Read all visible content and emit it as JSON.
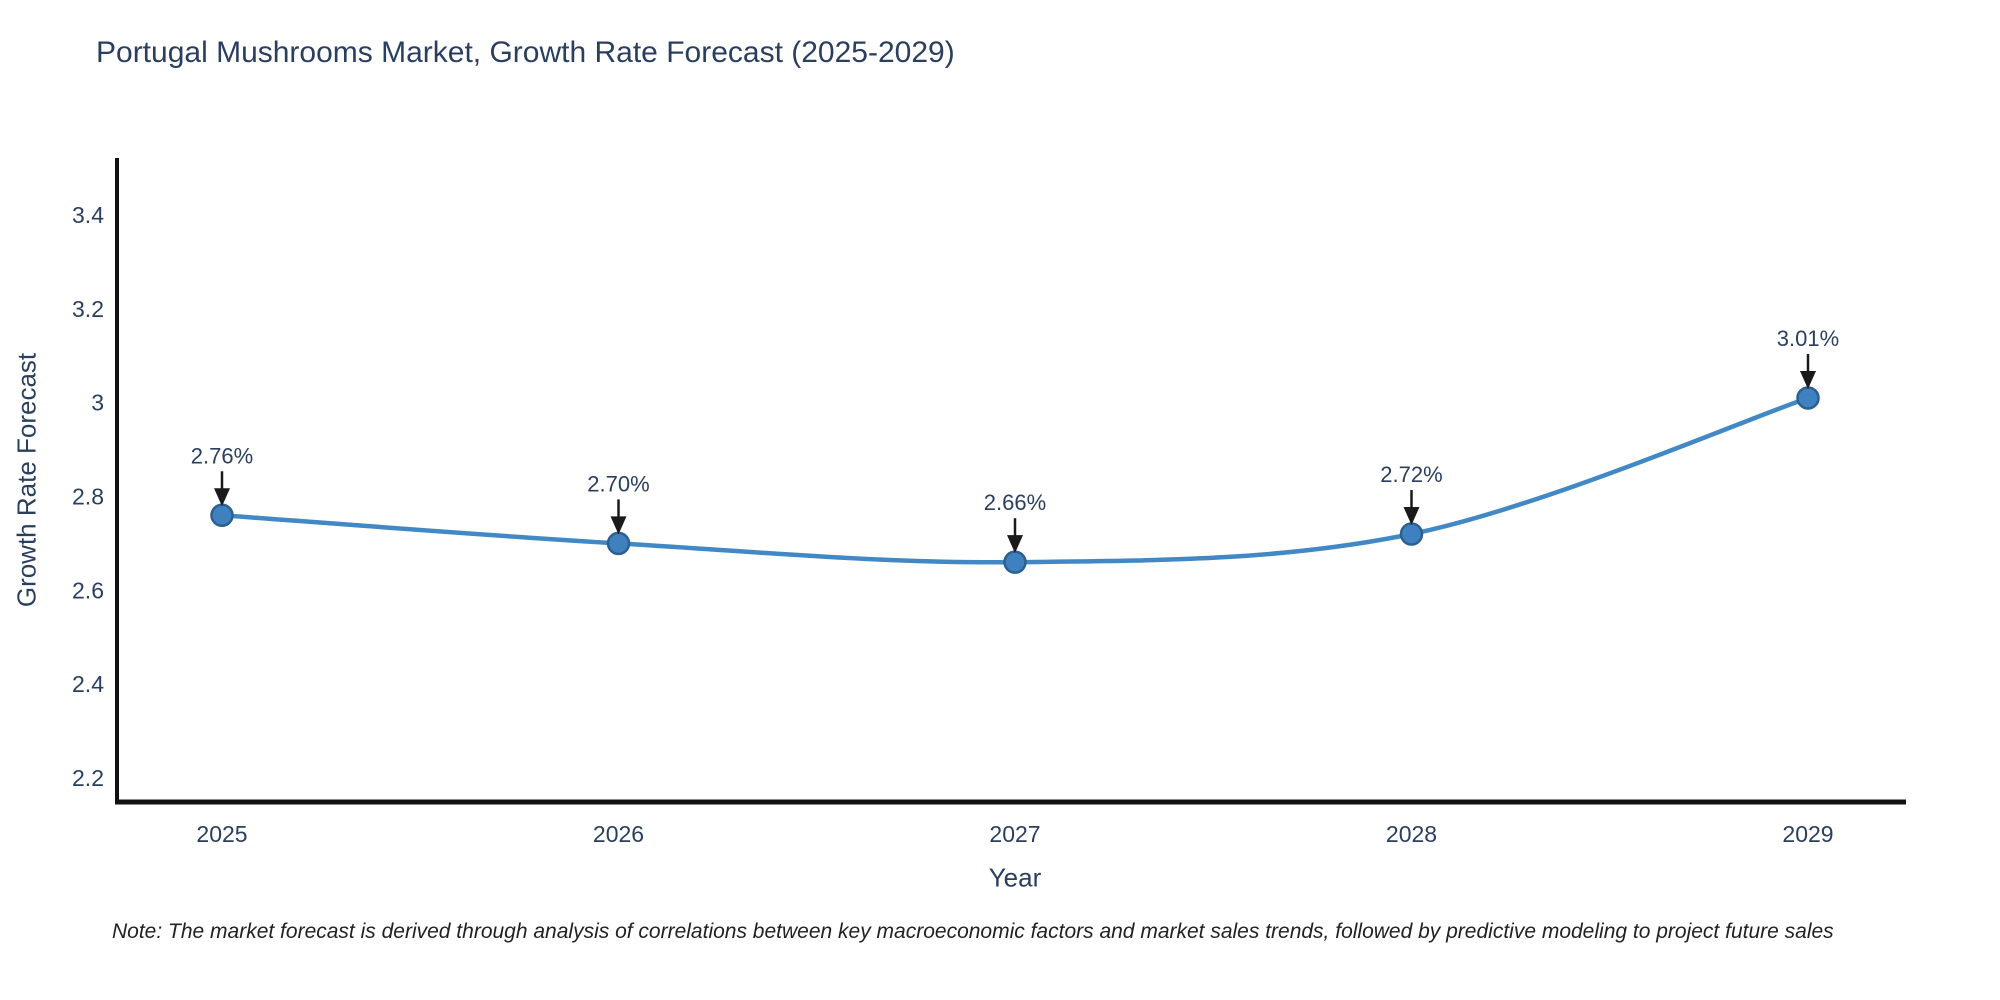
{
  "note": "Note: The market forecast is derived through analysis of correlations between key macroeconomic factors and market sales trends, followed by predictive modeling to project future sales",
  "chart_data": {
    "type": "line",
    "title": "Portugal Mushrooms Market, Growth Rate Forecast (2025-2029)",
    "xlabel": "Year",
    "ylabel": "Growth Rate Forecast",
    "x": [
      "2025",
      "2026",
      "2027",
      "2028",
      "2029"
    ],
    "series": [
      {
        "name": "Growth Rate Forecast",
        "values": [
          2.76,
          2.7,
          2.66,
          2.72,
          3.01
        ]
      }
    ],
    "point_labels": [
      "2.76%",
      "2.70%",
      "2.66%",
      "2.72%",
      "3.01%"
    ],
    "yticks": [
      2.2,
      2.4,
      2.6,
      2.8,
      3.0,
      3.2,
      3.4
    ],
    "ytick_labels": [
      "2.2",
      "2.4",
      "2.6",
      "2.8",
      "3",
      "3.2",
      "3.4"
    ],
    "ylim": [
      2.15,
      3.52
    ],
    "grid": false,
    "legend": "none",
    "line_shape": "spline",
    "annotation_style": "text-above-black-down-arrow",
    "colors": {
      "line": "#4288c5",
      "marker_fill": "#3f80c1",
      "marker_edge": "#2b608f",
      "axis": "#111111",
      "text": "#2a3f5f",
      "arrow": "#1a1a1a",
      "note": "#222222",
      "background": "#ffffff"
    }
  }
}
